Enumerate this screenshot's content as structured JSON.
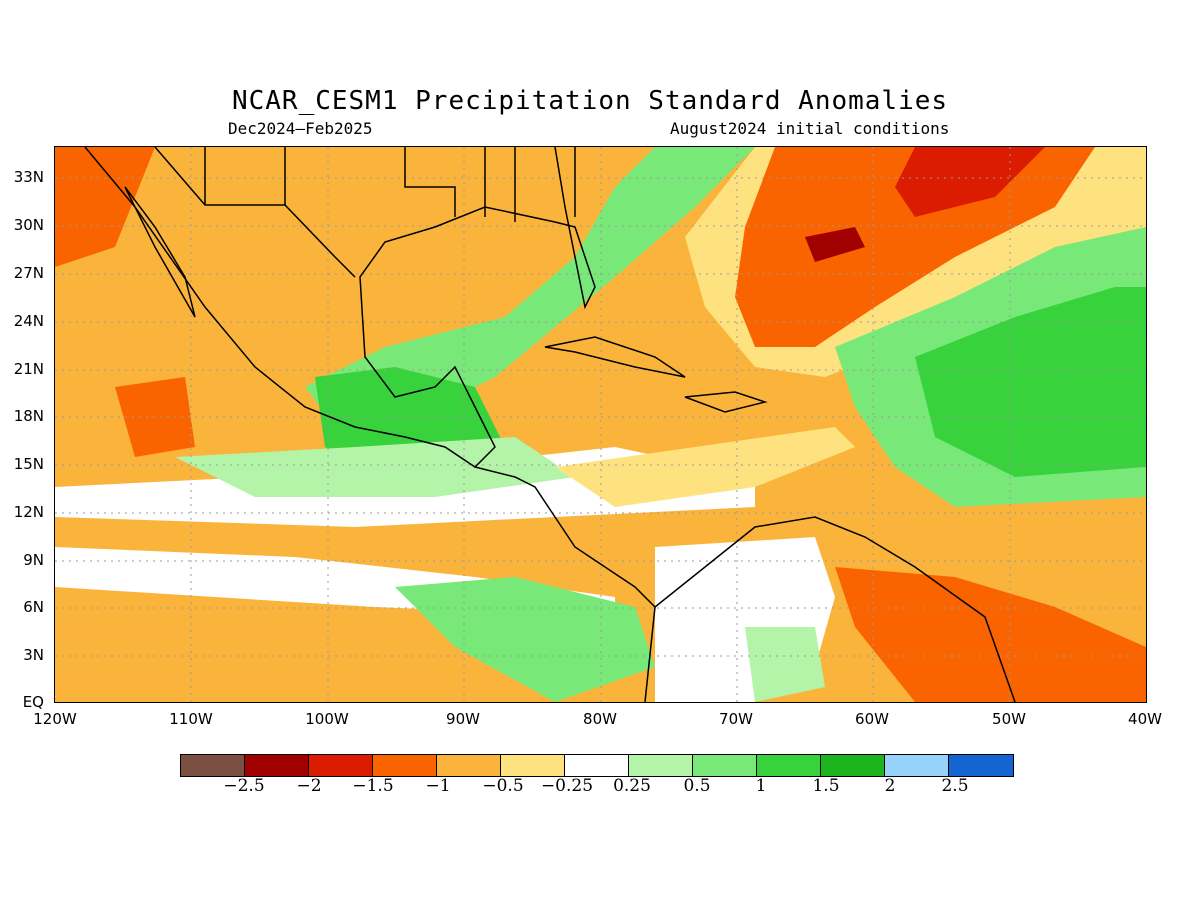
{
  "title": "NCAR_CESM1 Precipitation Standard Anomalies",
  "period": "Dec2024–Feb2025",
  "initial_conditions": "August2024 initial conditions",
  "lat_labels": [
    "33N",
    "30N",
    "27N",
    "24N",
    "21N",
    "18N",
    "15N",
    "12N",
    "9N",
    "6N",
    "3N",
    "EQ"
  ],
  "lon_labels": [
    "120W",
    "110W",
    "100W",
    "90W",
    "80W",
    "70W",
    "60W",
    "50W",
    "40W"
  ],
  "colorbar": {
    "colors": [
      "#7b5042",
      "#a00000",
      "#dc1c00",
      "#fa6400",
      "#fab43c",
      "#fee280",
      "#ffffff",
      "#b4f4a8",
      "#78e878",
      "#37d23c",
      "#1eb41e",
      "#96d2fa",
      "#1464d2"
    ],
    "labels": [
      "−2.5",
      "−2",
      "−1.5",
      "−1",
      "−0.5",
      "−0.25",
      "0.25",
      "0.5",
      "1",
      "1.5",
      "2",
      "2.5"
    ]
  }
}
